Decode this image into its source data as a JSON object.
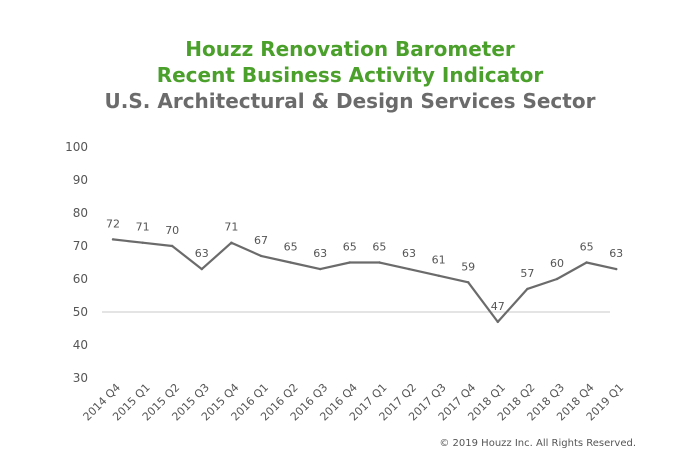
{
  "header": {
    "title_line1": "Houzz Renovation Barometer",
    "title_line2": "Recent Business Activity Indicator",
    "subtitle": "U.S. Architectural & Design Services Sector"
  },
  "colors": {
    "title_green": "#4aa02b",
    "subtitle_gray": "#6b6b6b",
    "line": "#6b6b6b",
    "reference_line": "#c8c8c8",
    "axis_text": "#555555"
  },
  "footer": {
    "copyright": "© 2019 Houzz Inc. All Rights Reserved."
  },
  "chart_data": {
    "type": "line",
    "title": "Houzz Renovation Barometer Recent Business Activity Indicator",
    "subtitle": "U.S. Architectural & Design Services Sector",
    "xlabel": "",
    "ylabel": "",
    "ylim": [
      30,
      100
    ],
    "yticks": [
      30,
      40,
      50,
      60,
      70,
      80,
      90,
      100
    ],
    "reference_line": 50,
    "grid": false,
    "categories": [
      "2014 Q4",
      "2015 Q1",
      "2015 Q2",
      "2015 Q3",
      "2015 Q4",
      "2016 Q1",
      "2016 Q2",
      "2016 Q3",
      "2016 Q4",
      "2017 Q1",
      "2017 Q2",
      "2017 Q3",
      "2017 Q4",
      "2018 Q1",
      "2018 Q2",
      "2018 Q3",
      "2018 Q4",
      "2019 Q1"
    ],
    "series": [
      {
        "values": [
          72,
          71,
          70,
          63,
          71,
          67,
          65,
          63,
          65,
          65,
          63,
          61,
          59,
          47,
          57,
          60,
          65,
          63
        ]
      }
    ]
  }
}
